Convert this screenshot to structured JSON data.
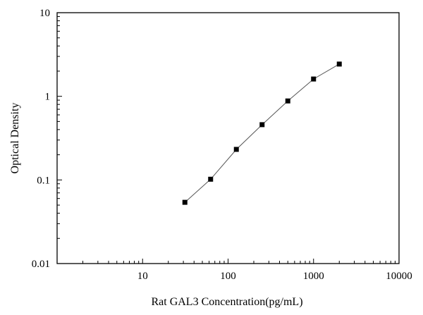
{
  "chart_data": {
    "type": "scatter",
    "title": "",
    "xlabel": "Rat GAL3 Concentration(pg/mL)",
    "ylabel": "Optical Density",
    "x_scale": "log",
    "y_scale": "log",
    "xlim": [
      1,
      10000
    ],
    "ylim": [
      0.01,
      10
    ],
    "x_ticks": [
      {
        "value": 10,
        "label": "10"
      },
      {
        "value": 100,
        "label": "100"
      },
      {
        "value": 1000,
        "label": "1000"
      },
      {
        "value": 10000,
        "label": "10000"
      }
    ],
    "y_ticks": [
      {
        "value": 0.01,
        "label": "0.01"
      },
      {
        "value": 0.1,
        "label": "0.1"
      },
      {
        "value": 1,
        "label": "1"
      },
      {
        "value": 10,
        "label": "10"
      }
    ],
    "grid": false,
    "legend": "none",
    "series": [
      {
        "marker": "square",
        "color": "#000000",
        "line_color": "#555555",
        "x": [
          31.25,
          62.5,
          125,
          250,
          500,
          1000,
          2000
        ],
        "y": [
          0.054,
          0.102,
          0.232,
          0.458,
          0.88,
          1.61,
          2.43
        ]
      }
    ]
  }
}
